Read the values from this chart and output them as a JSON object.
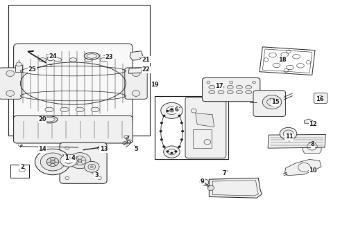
{
  "bg_color": "#ffffff",
  "lc": "#1a1a1a",
  "fig_w": 4.9,
  "fig_h": 3.6,
  "dpi": 100,
  "labels": [
    [
      1,
      0.195,
      0.365,
      0.185,
      0.38
    ],
    [
      2,
      0.065,
      0.33,
      0.065,
      0.345
    ],
    [
      3,
      0.285,
      0.295,
      0.265,
      0.31
    ],
    [
      4,
      0.215,
      0.365,
      0.215,
      0.378
    ],
    [
      5,
      0.4,
      0.4,
      0.395,
      0.418
    ],
    [
      6,
      0.52,
      0.56,
      0.53,
      0.57
    ],
    [
      7,
      0.66,
      0.305,
      0.67,
      0.315
    ],
    [
      8,
      0.92,
      0.42,
      0.91,
      0.43
    ],
    [
      9,
      0.595,
      0.27,
      0.6,
      0.28
    ],
    [
      10,
      0.92,
      0.315,
      0.915,
      0.325
    ],
    [
      11,
      0.85,
      0.45,
      0.85,
      0.46
    ],
    [
      12,
      0.92,
      0.5,
      0.91,
      0.508
    ],
    [
      13,
      0.305,
      0.4,
      0.29,
      0.412
    ],
    [
      14,
      0.125,
      0.4,
      0.11,
      0.41
    ],
    [
      15,
      0.81,
      0.59,
      0.795,
      0.6
    ],
    [
      16,
      0.94,
      0.6,
      0.94,
      0.61
    ],
    [
      17,
      0.645,
      0.655,
      0.64,
      0.665
    ],
    [
      18,
      0.83,
      0.76,
      0.815,
      0.77
    ],
    [
      19,
      0.455,
      0.66,
      0.45,
      0.67
    ],
    [
      20,
      0.125,
      0.52,
      0.135,
      0.51
    ],
    [
      21,
      0.43,
      0.76,
      0.41,
      0.77
    ],
    [
      22,
      0.43,
      0.72,
      0.415,
      0.728
    ],
    [
      23,
      0.32,
      0.77,
      0.305,
      0.778
    ],
    [
      24,
      0.155,
      0.775,
      0.14,
      0.782
    ],
    [
      25,
      0.095,
      0.72,
      0.095,
      0.73
    ]
  ]
}
